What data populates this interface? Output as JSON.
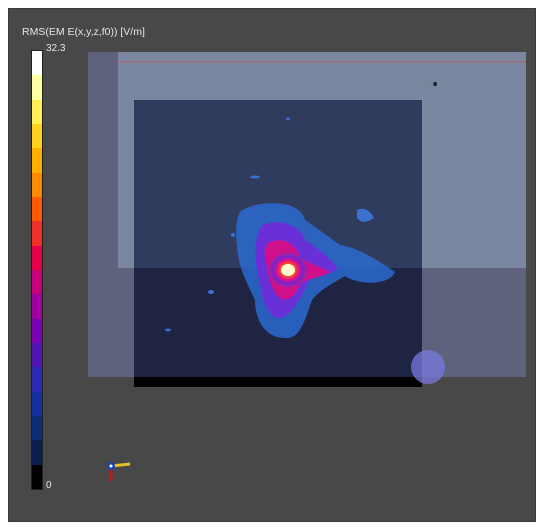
{
  "colorbar": {
    "title": "RMS(EM E(x,y,z,f0)) [V/m]",
    "max_label": "32.3",
    "min_label": "0",
    "stops": [
      "#ffffff",
      "#ffffa0",
      "#ffee55",
      "#ffd21e",
      "#ffb000",
      "#ff8a00",
      "#ff5a00",
      "#f03028",
      "#e6004a",
      "#c8007a",
      "#a000a0",
      "#7a00b0",
      "#5014b4",
      "#2a28b4",
      "#1430a0",
      "#0f2a78",
      "#0a1e50",
      "#000000"
    ]
  },
  "colors": {
    "viewport_bg": "#484848",
    "plane_tint": "#8890c8",
    "substrate": "#141830",
    "field_low": "#2060c0",
    "field_high": "#ffffc0"
  },
  "axes_triad": {
    "x": "x",
    "y": "y",
    "z": "z"
  }
}
